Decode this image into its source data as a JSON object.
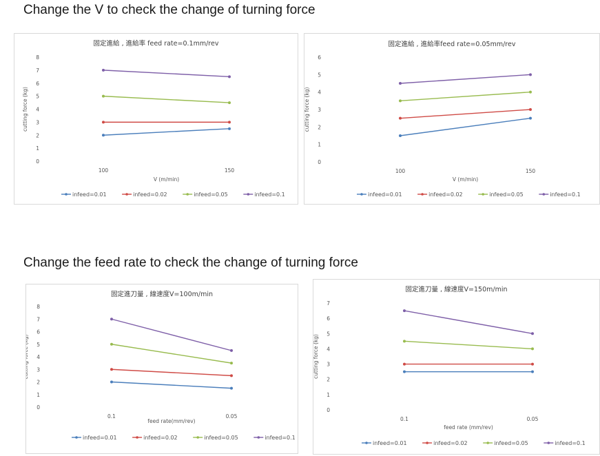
{
  "sections": [
    {
      "title": "Change the V to check the change of turning force"
    },
    {
      "title": "Change the feed rate to check the change of turning force"
    }
  ],
  "series_colors": [
    "#4a7ebb",
    "#cf4a45",
    "#98bb4e",
    "#7e5fa8"
  ],
  "chart_data": [
    {
      "type": "line",
      "title": "固定進給 , 進給率 feed rate=0.1mm/rev",
      "xlabel": "V (m/min)",
      "ylabel": "cutting force (kg)",
      "categories": [
        "100",
        "150"
      ],
      "ylim": [
        0,
        8
      ],
      "yticks": [
        0,
        1,
        2,
        3,
        4,
        5,
        6,
        7,
        8
      ],
      "grid": false,
      "legend": "bottom",
      "series": [
        {
          "name": "infeed=0.01",
          "values": [
            2,
            2.5
          ]
        },
        {
          "name": "infeed=0.02",
          "values": [
            3,
            3
          ]
        },
        {
          "name": "infeed=0.05",
          "values": [
            5,
            4.5
          ]
        },
        {
          "name": "infeed=0.1",
          "values": [
            7,
            6.5
          ]
        }
      ]
    },
    {
      "type": "line",
      "title": "固定進給 , 進給率feed rate=0.05mm/rev",
      "xlabel": "V (m/min)",
      "ylabel": "cutting force (kg)",
      "categories": [
        "100",
        "150"
      ],
      "ylim": [
        0,
        6
      ],
      "yticks": [
        0,
        1,
        2,
        3,
        4,
        5,
        6
      ],
      "grid": false,
      "legend": "bottom",
      "series": [
        {
          "name": "infeed=0.01",
          "values": [
            1.5,
            2.5
          ]
        },
        {
          "name": "infeed=0.02",
          "values": [
            2.5,
            3
          ]
        },
        {
          "name": "infeed=0.05",
          "values": [
            3.5,
            4
          ]
        },
        {
          "name": "infeed=0.1",
          "values": [
            4.5,
            5
          ]
        }
      ]
    },
    {
      "type": "line",
      "title": "固定進刀量 , 線速度V=100m/min",
      "xlabel": "feed rate(mm/rev)",
      "ylabel": "cutting force (kg)",
      "categories": [
        "0.1",
        "0.05"
      ],
      "ylim": [
        0,
        8
      ],
      "yticks": [
        0,
        1,
        2,
        3,
        4,
        5,
        6,
        7,
        8
      ],
      "grid": false,
      "legend": "bottom",
      "series": [
        {
          "name": "infeed=0.01",
          "values": [
            2,
            1.5
          ]
        },
        {
          "name": "infeed=0.02",
          "values": [
            3,
            2.5
          ]
        },
        {
          "name": "infeed=0.05",
          "values": [
            5,
            3.5
          ]
        },
        {
          "name": "infeed=0.1",
          "values": [
            7,
            4.5
          ]
        }
      ]
    },
    {
      "type": "line",
      "title": "固定進刀量 , 線速度V=150m/min",
      "xlabel": "feed rate (mm/rev)",
      "ylabel": "cutting force (kg)",
      "categories": [
        "0.1",
        "0.05"
      ],
      "ylim": [
        0,
        7
      ],
      "yticks": [
        0,
        1,
        2,
        3,
        4,
        5,
        6,
        7
      ],
      "grid": false,
      "legend": "bottom",
      "series": [
        {
          "name": "infeed=0.01",
          "values": [
            2.5,
            2.5
          ]
        },
        {
          "name": "infeed=0.02",
          "values": [
            3,
            3
          ]
        },
        {
          "name": "infeed=0.05",
          "values": [
            4.5,
            4
          ]
        },
        {
          "name": "infeed=0.1",
          "values": [
            6.5,
            5
          ]
        }
      ]
    }
  ]
}
